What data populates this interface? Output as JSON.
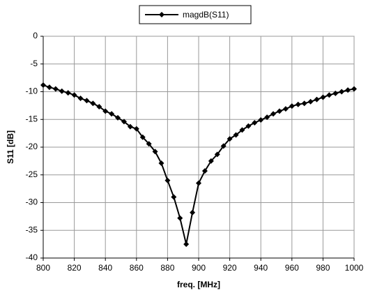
{
  "chart_data": {
    "type": "line",
    "x_label": "freq. [MHz]",
    "y_label": "S11 [dB]",
    "x": [
      800,
      804,
      808,
      812,
      816,
      820,
      824,
      828,
      832,
      836,
      840,
      844,
      848,
      852,
      856,
      860,
      864,
      868,
      872,
      876,
      880,
      884,
      888,
      892,
      896,
      900,
      904,
      908,
      912,
      916,
      920,
      924,
      928,
      932,
      936,
      940,
      944,
      948,
      952,
      956,
      960,
      964,
      968,
      972,
      976,
      980,
      984,
      988,
      992,
      996,
      1000
    ],
    "series": [
      {
        "name": "magdB(S11)",
        "color": "#000000",
        "values": [
          -8.8,
          -9.2,
          -9.5,
          -9.9,
          -10.2,
          -10.6,
          -11.2,
          -11.6,
          -12.1,
          -12.7,
          -13.5,
          -14.0,
          -14.7,
          -15.4,
          -16.3,
          -16.7,
          -18.2,
          -19.4,
          -20.8,
          -22.9,
          -26.0,
          -29.0,
          -32.8,
          -37.5,
          -31.8,
          -26.5,
          -24.3,
          -22.5,
          -21.3,
          -19.8,
          -18.5,
          -17.8,
          -16.9,
          -16.2,
          -15.6,
          -15.1,
          -14.6,
          -14.0,
          -13.5,
          -13.1,
          -12.6,
          -12.3,
          -12.1,
          -11.8,
          -11.4,
          -11.0,
          -10.6,
          -10.3,
          -10.0,
          -9.7,
          -9.5
        ]
      }
    ],
    "xlim": [
      800,
      1000
    ],
    "xticks": [
      800,
      820,
      840,
      860,
      880,
      900,
      920,
      940,
      960,
      980,
      1000
    ],
    "ylim": [
      -40,
      0
    ],
    "yticks": [
      -40,
      -35,
      -30,
      -25,
      -20,
      -15,
      -10,
      -5,
      0
    ],
    "grid": true,
    "legend": "top"
  }
}
